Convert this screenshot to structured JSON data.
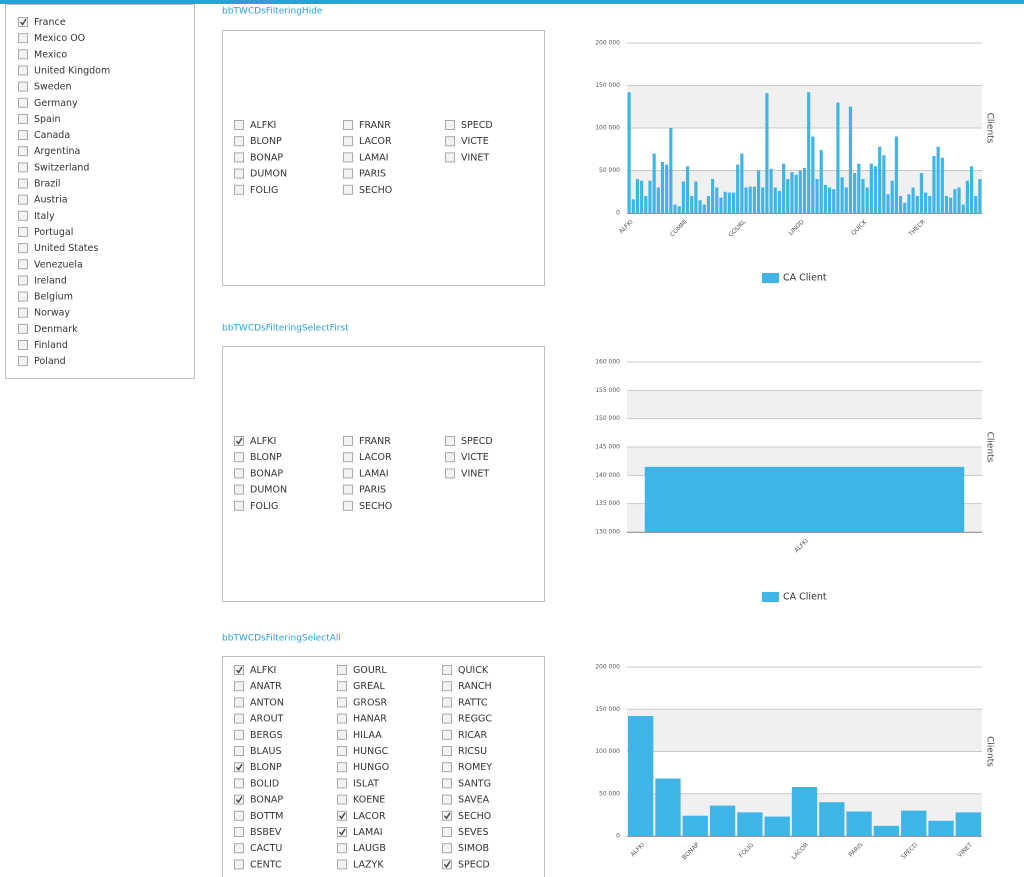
{
  "country_list": {
    "items": [
      {
        "label": "France",
        "checked": true
      },
      {
        "label": "Mexico OO",
        "checked": false
      },
      {
        "label": "Mexico",
        "checked": false
      },
      {
        "label": "United Kingdom",
        "checked": false
      },
      {
        "label": "Sweden",
        "checked": false
      },
      {
        "label": "Germany",
        "checked": false
      },
      {
        "label": "Spain",
        "checked": false
      },
      {
        "label": "Canada",
        "checked": false
      },
      {
        "label": "Argentina",
        "checked": false
      },
      {
        "label": "Switzerland",
        "checked": false
      },
      {
        "label": "Brazil",
        "checked": false
      },
      {
        "label": "Austria",
        "checked": false
      },
      {
        "label": "Italy",
        "checked": false
      },
      {
        "label": "Portugal",
        "checked": false
      },
      {
        "label": "United States",
        "checked": false
      },
      {
        "label": "Venezuela",
        "checked": false
      },
      {
        "label": "Ireland",
        "checked": false
      },
      {
        "label": "Belgium",
        "checked": false
      },
      {
        "label": "Norway",
        "checked": false
      },
      {
        "label": "Denmark",
        "checked": false
      },
      {
        "label": "Finland",
        "checked": false
      },
      {
        "label": "Poland",
        "checked": false
      }
    ]
  },
  "panels": [
    {
      "title": "bbTWCDsFilteringHide",
      "columns": [
        [
          {
            "label": "ALFKI",
            "checked": false
          },
          {
            "label": "BLONP",
            "checked": false
          },
          {
            "label": "BONAP",
            "checked": false
          },
          {
            "label": "DUMON",
            "checked": false
          },
          {
            "label": "FOLIG",
            "checked": false
          }
        ],
        [
          {
            "label": "FRANR",
            "checked": false
          },
          {
            "label": "LACOR",
            "checked": false
          },
          {
            "label": "LAMAI",
            "checked": false
          },
          {
            "label": "PARIS",
            "checked": false
          },
          {
            "label": "SECHO",
            "checked": false
          }
        ],
        [
          {
            "label": "SPECD",
            "checked": false
          },
          {
            "label": "VICTE",
            "checked": false
          },
          {
            "label": "VINET",
            "checked": false
          }
        ]
      ]
    },
    {
      "title": "bbTWCDsFilteringSelectFirst",
      "columns": [
        [
          {
            "label": "ALFKI",
            "checked": true
          },
          {
            "label": "BLONP",
            "checked": false
          },
          {
            "label": "BONAP",
            "checked": false
          },
          {
            "label": "DUMON",
            "checked": false
          },
          {
            "label": "FOLIG",
            "checked": false
          }
        ],
        [
          {
            "label": "FRANR",
            "checked": false
          },
          {
            "label": "LACOR",
            "checked": false
          },
          {
            "label": "LAMAI",
            "checked": false
          },
          {
            "label": "PARIS",
            "checked": false
          },
          {
            "label": "SECHO",
            "checked": false
          }
        ],
        [
          {
            "label": "SPECD",
            "checked": false
          },
          {
            "label": "VICTE",
            "checked": false
          },
          {
            "label": "VINET",
            "checked": false
          }
        ]
      ]
    },
    {
      "title": "bbTWCDsFilteringSelectAll",
      "columns": [
        [
          {
            "label": "ALFKI",
            "checked": true
          },
          {
            "label": "ANATR",
            "checked": false
          },
          {
            "label": "ANTON",
            "checked": false
          },
          {
            "label": "AROUT",
            "checked": false
          },
          {
            "label": "BERGS",
            "checked": false
          },
          {
            "label": "BLAUS",
            "checked": false
          },
          {
            "label": "BLONP",
            "checked": true
          },
          {
            "label": "BOLID",
            "checked": false
          },
          {
            "label": "BONAP",
            "checked": true
          },
          {
            "label": "BOTTM",
            "checked": false
          },
          {
            "label": "BSBEV",
            "checked": false
          },
          {
            "label": "CACTU",
            "checked": false
          },
          {
            "label": "CENTC",
            "checked": false
          }
        ],
        [
          {
            "label": "GOURL",
            "checked": false
          },
          {
            "label": "GREAL",
            "checked": false
          },
          {
            "label": "GROSR",
            "checked": false
          },
          {
            "label": "HANAR",
            "checked": false
          },
          {
            "label": "HILAA",
            "checked": false
          },
          {
            "label": "HUNGC",
            "checked": false
          },
          {
            "label": "HUNGO",
            "checked": false
          },
          {
            "label": "ISLAT",
            "checked": false
          },
          {
            "label": "KOENE",
            "checked": false
          },
          {
            "label": "LACOR",
            "checked": true
          },
          {
            "label": "LAMAI",
            "checked": true
          },
          {
            "label": "LAUGB",
            "checked": false
          },
          {
            "label": "LAZYK",
            "checked": false
          }
        ],
        [
          {
            "label": "QUICK",
            "checked": false
          },
          {
            "label": "RANCH",
            "checked": false
          },
          {
            "label": "RATTC",
            "checked": false
          },
          {
            "label": "REGGC",
            "checked": false
          },
          {
            "label": "RICAR",
            "checked": false
          },
          {
            "label": "RICSU",
            "checked": false
          },
          {
            "label": "ROMEY",
            "checked": false
          },
          {
            "label": "SANTG",
            "checked": false
          },
          {
            "label": "SAVEA",
            "checked": false
          },
          {
            "label": "SECHO",
            "checked": true
          },
          {
            "label": "SEVES",
            "checked": false
          },
          {
            "label": "SIMOB",
            "checked": false
          },
          {
            "label": "SPECD",
            "checked": true
          }
        ]
      ]
    }
  ],
  "chart_data": [
    {
      "type": "bar",
      "ylabel": "Clients",
      "grid": true,
      "banded": true,
      "ylim": [
        0,
        200000
      ],
      "yticks": [
        0,
        {
          "value": 50000,
          "label": "50 000"
        },
        {
          "value": 100000,
          "label": "100 000"
        },
        {
          "value": 150000,
          "label": "150 000"
        },
        {
          "value": 200000,
          "label": "200 000"
        }
      ],
      "categories": [
        "ALFKI",
        null,
        null,
        null,
        null,
        null,
        null,
        null,
        null,
        null,
        null,
        null,
        null,
        "COMMI",
        null,
        null,
        null,
        null,
        null,
        null,
        null,
        null,
        null,
        null,
        null,
        null,
        null,
        "GOURL",
        null,
        null,
        null,
        null,
        null,
        null,
        null,
        null,
        null,
        null,
        null,
        null,
        null,
        "LINOD",
        null,
        null,
        null,
        null,
        null,
        null,
        null,
        null,
        null,
        null,
        null,
        null,
        null,
        null,
        "QUICK",
        null,
        null,
        null,
        null,
        null,
        null,
        null,
        null,
        null,
        null,
        null,
        null,
        null,
        "THECR",
        null,
        null,
        null,
        null,
        null,
        null,
        null,
        null,
        null,
        null,
        null,
        null,
        null,
        null
      ],
      "series": [
        {
          "name": "CA Client",
          "color": "#3fb4e7",
          "values": [
            142000,
            16000,
            40000,
            38000,
            20000,
            38000,
            70000,
            30000,
            60000,
            57000,
            100000,
            10000,
            8000,
            37000,
            55000,
            20000,
            37000,
            15000,
            10000,
            20000,
            40000,
            30000,
            18000,
            25000,
            24000,
            24000,
            57000,
            70000,
            30000,
            31000,
            31000,
            50000,
            30000,
            141000,
            52000,
            30000,
            26000,
            58000,
            40000,
            48000,
            45000,
            50000,
            53000,
            142000,
            90000,
            40000,
            74000,
            33000,
            30000,
            28000,
            130000,
            42000,
            30000,
            125000,
            47000,
            58000,
            40000,
            30000,
            58000,
            55000,
            78000,
            68000,
            22000,
            38000,
            90000,
            20000,
            12000,
            22000,
            30000,
            20000,
            47000,
            24000,
            20000,
            67000,
            78000,
            65000,
            20000,
            18000,
            28000,
            30000,
            10000,
            38000,
            55000,
            20000,
            40000
          ]
        }
      ]
    },
    {
      "type": "bar",
      "ylabel": "Clients",
      "grid": true,
      "banded": true,
      "ylim": [
        130000,
        160000
      ],
      "yticks": [
        {
          "value": 130000,
          "label": "130 000"
        },
        {
          "value": 135000,
          "label": "135 000"
        },
        {
          "value": 140000,
          "label": "140 000"
        },
        {
          "value": 145000,
          "label": "145 000"
        },
        {
          "value": 150000,
          "label": "150 000"
        },
        {
          "value": 155000,
          "label": "155 000"
        },
        {
          "value": 160000,
          "label": "160 000"
        }
      ],
      "categories": [
        "ALFKI"
      ],
      "series": [
        {
          "name": "CA Client",
          "color": "#3fb4e7",
          "values": [
            141500
          ]
        }
      ]
    },
    {
      "type": "bar",
      "ylabel": "Clients",
      "grid": true,
      "banded": true,
      "ylim": [
        0,
        200000
      ],
      "yticks": [
        0,
        {
          "value": 50000,
          "label": "50 000"
        },
        {
          "value": 100000,
          "label": "100 000"
        },
        {
          "value": 150000,
          "label": "150 000"
        },
        {
          "value": 200000,
          "label": "200 000"
        }
      ],
      "categories": [
        "ALFKI",
        null,
        "BONAP",
        null,
        "FOLIG",
        null,
        "LACOR",
        null,
        "PARIS",
        null,
        "SPECD",
        null,
        "VINET"
      ],
      "series": [
        {
          "name": "CA Client",
          "color": "#3fb4e7",
          "values": [
            142000,
            68000,
            24000,
            36000,
            28000,
            23000,
            58000,
            40000,
            29000,
            12000,
            30000,
            18000,
            28000
          ]
        }
      ]
    }
  ]
}
